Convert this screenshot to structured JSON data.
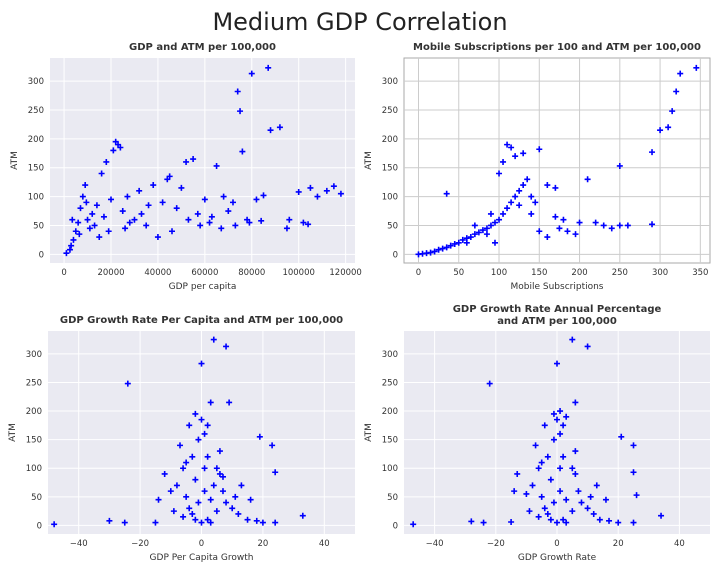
{
  "figure": {
    "title": "Medium GDP Correlation"
  },
  "colors": {
    "marker": "#0000ff",
    "panel_bg": "#eaeaf2",
    "grid": "#ffffff",
    "panel_bg_alt": "#ffffff",
    "grid_alt": "#cccccc"
  },
  "chart_data": [
    {
      "type": "scatter",
      "title": "GDP and ATM per 100,000",
      "xlabel": "GDP per capita",
      "ylabel": "ATM",
      "xlim": [
        -6000,
        124000
      ],
      "ylim": [
        -15,
        340
      ],
      "xticks": [
        0,
        20000,
        40000,
        60000,
        80000,
        100000,
        120000
      ],
      "xtick_labels": [
        "0",
        "20000",
        "40000",
        "60000",
        "80000",
        "100000",
        "120000"
      ],
      "yticks": [
        0,
        50,
        100,
        150,
        200,
        250,
        300
      ],
      "ytick_labels": [
        "0",
        "50",
        "100",
        "150",
        "200",
        "250",
        "300"
      ],
      "style": "darkgrid",
      "points": [
        [
          1000,
          2
        ],
        [
          2500,
          8
        ],
        [
          3000,
          15
        ],
        [
          4000,
          25
        ],
        [
          5000,
          40
        ],
        [
          6000,
          55
        ],
        [
          7000,
          80
        ],
        [
          8000,
          100
        ],
        [
          9000,
          120
        ],
        [
          10000,
          60
        ],
        [
          11000,
          45
        ],
        [
          12000,
          70
        ],
        [
          14000,
          85
        ],
        [
          15000,
          30
        ],
        [
          16000,
          140
        ],
        [
          18000,
          160
        ],
        [
          20000,
          95
        ],
        [
          21000,
          180
        ],
        [
          22000,
          195
        ],
        [
          23000,
          190
        ],
        [
          24000,
          185
        ],
        [
          25000,
          75
        ],
        [
          27000,
          100
        ],
        [
          30000,
          60
        ],
        [
          32000,
          110
        ],
        [
          35000,
          50
        ],
        [
          38000,
          120
        ],
        [
          40000,
          30
        ],
        [
          42000,
          90
        ],
        [
          44000,
          130
        ],
        [
          45000,
          135
        ],
        [
          48000,
          80
        ],
        [
          50000,
          115
        ],
        [
          52000,
          160
        ],
        [
          55000,
          165
        ],
        [
          57000,
          70
        ],
        [
          60000,
          95
        ],
        [
          62000,
          55
        ],
        [
          65000,
          153
        ],
        [
          68000,
          100
        ],
        [
          70000,
          75
        ],
        [
          72000,
          90
        ],
        [
          74000,
          282
        ],
        [
          75000,
          248
        ],
        [
          76000,
          178
        ],
        [
          78000,
          60
        ],
        [
          80000,
          313
        ],
        [
          82000,
          95
        ],
        [
          85000,
          102
        ],
        [
          87000,
          323
        ],
        [
          88000,
          215
        ],
        [
          92000,
          220
        ],
        [
          95000,
          45
        ],
        [
          100000,
          108
        ],
        [
          102000,
          55
        ],
        [
          105000,
          115
        ],
        [
          108000,
          100
        ],
        [
          112000,
          110
        ],
        [
          115000,
          118
        ],
        [
          118000,
          105
        ],
        [
          3500,
          60
        ],
        [
          6500,
          35
        ],
        [
          9500,
          90
        ],
        [
          13000,
          50
        ],
        [
          17000,
          65
        ],
        [
          19000,
          40
        ],
        [
          26000,
          45
        ],
        [
          28000,
          55
        ],
        [
          33000,
          70
        ],
        [
          36000,
          85
        ],
        [
          46000,
          40
        ],
        [
          53000,
          60
        ],
        [
          58000,
          50
        ],
        [
          63000,
          65
        ],
        [
          67000,
          45
        ],
        [
          73000,
          50
        ],
        [
          79000,
          55
        ],
        [
          84000,
          58
        ],
        [
          96000,
          60
        ],
        [
          104000,
          52
        ]
      ]
    },
    {
      "type": "scatter",
      "title": "Mobile Subscriptions per 100 and ATM per 100,000",
      "xlabel": "Mobile Subscriptions",
      "ylabel": "ATM",
      "xlim": [
        -18,
        362
      ],
      "ylim": [
        -15,
        340
      ],
      "xticks": [
        0,
        50,
        100,
        150,
        200,
        250,
        300,
        350
      ],
      "xtick_labels": [
        "0",
        "50",
        "100",
        "150",
        "200",
        "250",
        "300",
        "350"
      ],
      "yticks": [
        0,
        50,
        100,
        150,
        200,
        250,
        300
      ],
      "ytick_labels": [
        "0",
        "50",
        "100",
        "150",
        "200",
        "250",
        "300"
      ],
      "style": "whitegrid",
      "points": [
        [
          0,
          0
        ],
        [
          5,
          1
        ],
        [
          10,
          2
        ],
        [
          15,
          3
        ],
        [
          20,
          5
        ],
        [
          25,
          8
        ],
        [
          30,
          10
        ],
        [
          35,
          12
        ],
        [
          40,
          15
        ],
        [
          45,
          18
        ],
        [
          50,
          20
        ],
        [
          55,
          25
        ],
        [
          60,
          28
        ],
        [
          65,
          30
        ],
        [
          70,
          35
        ],
        [
          75,
          38
        ],
        [
          80,
          42
        ],
        [
          85,
          45
        ],
        [
          90,
          50
        ],
        [
          95,
          55
        ],
        [
          100,
          60
        ],
        [
          105,
          70
        ],
        [
          110,
          80
        ],
        [
          115,
          90
        ],
        [
          120,
          100
        ],
        [
          125,
          110
        ],
        [
          130,
          120
        ],
        [
          135,
          130
        ],
        [
          140,
          100
        ],
        [
          145,
          90
        ],
        [
          110,
          190
        ],
        [
          115,
          185
        ],
        [
          120,
          170
        ],
        [
          130,
          175
        ],
        [
          150,
          182
        ],
        [
          160,
          120
        ],
        [
          170,
          115
        ],
        [
          180,
          60
        ],
        [
          200,
          55
        ],
        [
          210,
          130
        ],
        [
          220,
          55
        ],
        [
          250,
          50
        ],
        [
          250,
          153
        ],
        [
          260,
          50
        ],
        [
          290,
          52
        ],
        [
          290,
          177
        ],
        [
          300,
          215
        ],
        [
          310,
          220
        ],
        [
          315,
          248
        ],
        [
          320,
          282
        ],
        [
          325,
          313
        ],
        [
          345,
          323
        ],
        [
          35,
          105
        ],
        [
          95,
          20
        ],
        [
          100,
          140
        ],
        [
          105,
          160
        ],
        [
          125,
          85
        ],
        [
          140,
          70
        ],
        [
          150,
          40
        ],
        [
          160,
          30
        ],
        [
          170,
          65
        ],
        [
          175,
          45
        ],
        [
          185,
          40
        ],
        [
          195,
          35
        ],
        [
          230,
          50
        ],
        [
          240,
          45
        ],
        [
          70,
          50
        ],
        [
          60,
          20
        ],
        [
          85,
          35
        ],
        [
          90,
          70
        ]
      ]
    },
    {
      "type": "scatter",
      "title": "GDP Growth Rate Per Capita and ATM per 100,000",
      "xlabel": "GDP Per Capita Growth",
      "ylabel": "ATM",
      "xlim": [
        -50,
        50
      ],
      "ylim": [
        -15,
        340
      ],
      "xticks": [
        -40,
        -20,
        0,
        20,
        40
      ],
      "xtick_labels": [
        "−40",
        "−20",
        "0",
        "20",
        "40"
      ],
      "yticks": [
        0,
        50,
        100,
        150,
        200,
        250,
        300
      ],
      "ytick_labels": [
        "0",
        "50",
        "100",
        "150",
        "200",
        "250",
        "300"
      ],
      "style": "darkgrid",
      "points": [
        [
          -48,
          2
        ],
        [
          -30,
          8
        ],
        [
          -25,
          5
        ],
        [
          -24,
          248
        ],
        [
          -15,
          5
        ],
        [
          -14,
          45
        ],
        [
          -12,
          90
        ],
        [
          -10,
          60
        ],
        [
          -8,
          70
        ],
        [
          -6,
          100
        ],
        [
          -5,
          50
        ],
        [
          -4,
          30
        ],
        [
          -3,
          120
        ],
        [
          -2,
          80
        ],
        [
          -1,
          150
        ],
        [
          0,
          185
        ],
        [
          1,
          160
        ],
        [
          2,
          120
        ],
        [
          3,
          215
        ],
        [
          4,
          70
        ],
        [
          -2,
          195
        ],
        [
          0,
          283
        ],
        [
          4,
          325
        ],
        [
          8,
          313
        ],
        [
          9,
          215
        ],
        [
          5,
          100
        ],
        [
          6,
          90
        ],
        [
          7,
          60
        ],
        [
          8,
          40
        ],
        [
          10,
          30
        ],
        [
          12,
          20
        ],
        [
          15,
          10
        ],
        [
          18,
          8
        ],
        [
          20,
          5
        ],
        [
          19,
          155
        ],
        [
          23,
          140
        ],
        [
          24,
          93
        ],
        [
          24,
          5
        ],
        [
          33,
          17
        ],
        [
          -3,
          20
        ],
        [
          -1,
          40
        ],
        [
          1,
          60
        ],
        [
          2,
          10
        ],
        [
          3,
          5
        ],
        [
          -6,
          15
        ],
        [
          -9,
          25
        ],
        [
          11,
          50
        ],
        [
          13,
          70
        ],
        [
          16,
          45
        ],
        [
          6,
          130
        ],
        [
          -7,
          140
        ],
        [
          -4,
          175
        ],
        [
          2,
          175
        ],
        [
          0,
          5
        ],
        [
          -2,
          10
        ],
        [
          1,
          100
        ],
        [
          3,
          45
        ],
        [
          -5,
          110
        ],
        [
          5,
          25
        ],
        [
          7,
          85
        ]
      ]
    },
    {
      "type": "scatter",
      "title": "GDP Growth Rate Annual Percentage",
      "title_line2": "and ATM per 100,000",
      "xlabel": "GDP Growth Rate",
      "ylabel": "ATM",
      "xlim": [
        -50,
        50
      ],
      "ylim": [
        -15,
        340
      ],
      "xticks": [
        -40,
        -20,
        0,
        20,
        40
      ],
      "xtick_labels": [
        "−40",
        "−20",
        "0",
        "20",
        "40"
      ],
      "yticks": [
        0,
        50,
        100,
        150,
        200,
        250,
        300
      ],
      "ytick_labels": [
        "0",
        "50",
        "100",
        "150",
        "200",
        "250",
        "300"
      ],
      "style": "darkgrid",
      "points": [
        [
          -47,
          2
        ],
        [
          -28,
          7
        ],
        [
          -24,
          5
        ],
        [
          -22,
          248
        ],
        [
          -15,
          6
        ],
        [
          -14,
          60
        ],
        [
          -13,
          90
        ],
        [
          -10,
          55
        ],
        [
          -8,
          70
        ],
        [
          -6,
          100
        ],
        [
          -5,
          50
        ],
        [
          -4,
          30
        ],
        [
          -3,
          120
        ],
        [
          -2,
          80
        ],
        [
          -1,
          150
        ],
        [
          0,
          185
        ],
        [
          1,
          160
        ],
        [
          2,
          120
        ],
        [
          3,
          190
        ],
        [
          6,
          215
        ],
        [
          -1,
          195
        ],
        [
          0,
          283
        ],
        [
          5,
          325
        ],
        [
          10,
          313
        ],
        [
          1,
          200
        ],
        [
          5,
          100
        ],
        [
          6,
          90
        ],
        [
          7,
          60
        ],
        [
          8,
          40
        ],
        [
          10,
          30
        ],
        [
          12,
          20
        ],
        [
          14,
          10
        ],
        [
          17,
          8
        ],
        [
          20,
          5
        ],
        [
          21,
          155
        ],
        [
          25,
          140
        ],
        [
          25,
          93
        ],
        [
          26,
          53
        ],
        [
          34,
          17
        ],
        [
          25,
          5
        ],
        [
          -3,
          20
        ],
        [
          -1,
          40
        ],
        [
          1,
          60
        ],
        [
          2,
          10
        ],
        [
          3,
          5
        ],
        [
          -6,
          15
        ],
        [
          -9,
          25
        ],
        [
          11,
          50
        ],
        [
          13,
          70
        ],
        [
          16,
          45
        ],
        [
          6,
          130
        ],
        [
          -7,
          140
        ],
        [
          -4,
          175
        ],
        [
          2,
          175
        ],
        [
          0,
          5
        ],
        [
          -2,
          10
        ],
        [
          1,
          100
        ],
        [
          3,
          45
        ],
        [
          -5,
          110
        ],
        [
          5,
          25
        ]
      ]
    }
  ]
}
